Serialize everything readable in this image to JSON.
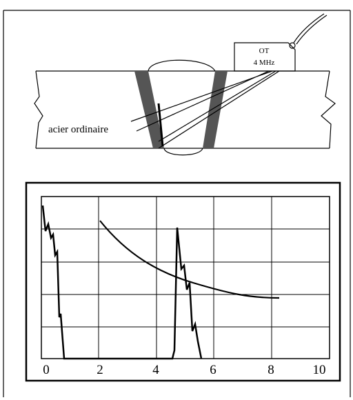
{
  "probe": {
    "line1": "OT",
    "line2": "4 MHz"
  },
  "weld": {
    "label": "acier ordinaire"
  },
  "scope": {
    "x_labels": [
      "0",
      "2",
      "4",
      "6",
      "8",
      "10"
    ]
  }
}
